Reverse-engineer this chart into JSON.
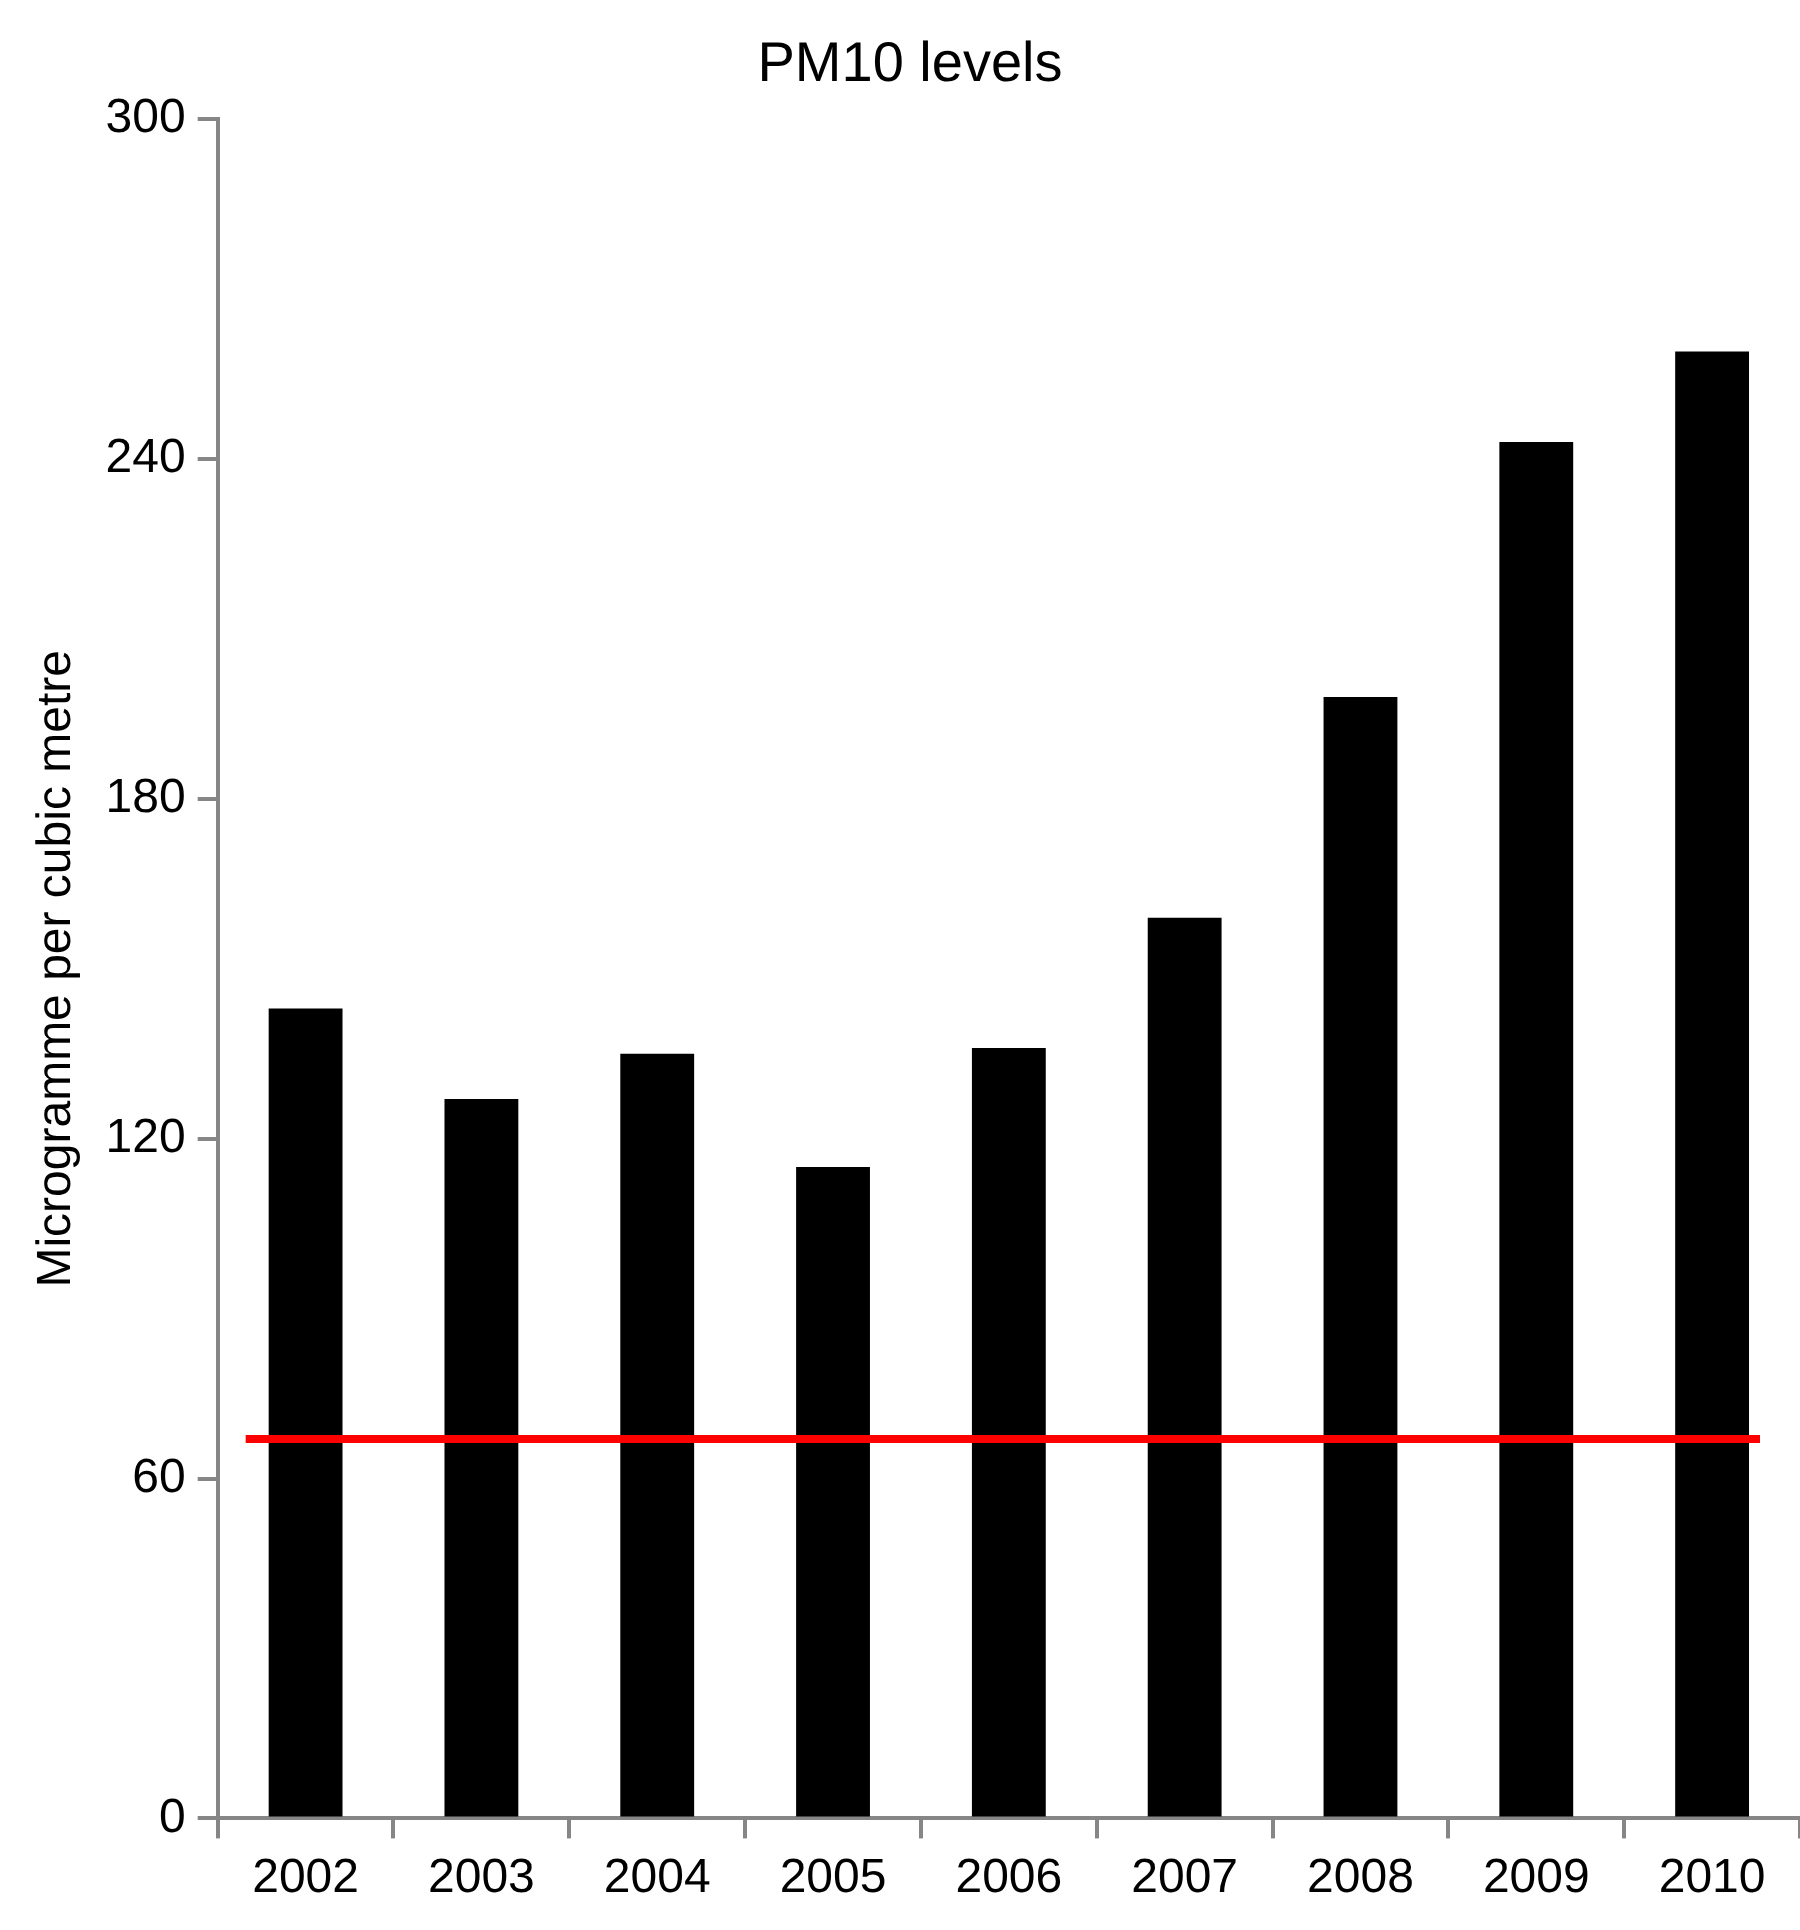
{
  "chart_data": {
    "type": "bar",
    "title": "PM10 levels",
    "ylabel": "Microgramme per cubic metre",
    "categories": [
      "2002",
      "2003",
      "2004",
      "2005",
      "2006",
      "2007",
      "2008",
      "2009",
      "2010"
    ],
    "values": [
      143,
      127,
      135,
      115,
      136,
      159,
      198,
      243,
      259
    ],
    "color": "#000000",
    "ylim": [
      0,
      300
    ],
    "yticks": [
      0,
      60,
      120,
      180,
      240,
      300
    ],
    "grid": false,
    "legend": false,
    "ref_lines": [
      {
        "axis": "y",
        "value": 67,
        "color": "#ff0000",
        "line_style": "solid"
      }
    ]
  }
}
